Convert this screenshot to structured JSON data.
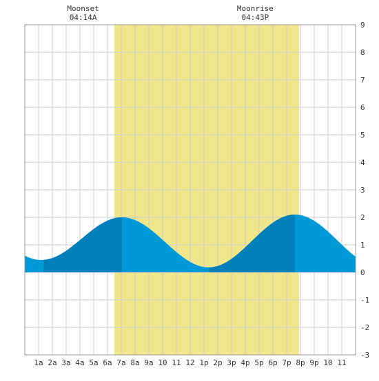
{
  "chart_data": {
    "type": "area",
    "xlim": [
      0,
      24
    ],
    "ylim": [
      -3,
      9
    ],
    "y_ticks": [
      -3,
      -2,
      -1,
      0,
      1,
      2,
      3,
      4,
      5,
      6,
      7,
      8,
      9
    ],
    "x_tick_labels": [
      "1a",
      "2a",
      "3a",
      "4a",
      "5a",
      "6a",
      "7a",
      "8a",
      "9a",
      "10",
      "11",
      "12",
      "1p",
      "2p",
      "3p",
      "4p",
      "5p",
      "6p",
      "7p",
      "8p",
      "9p",
      "10",
      "11"
    ],
    "grid": true,
    "daylight": {
      "start": 6.5,
      "end": 19.9
    },
    "highlighted_hours": [
      [
        1.35,
        7.05
      ],
      [
        13.35,
        19.6
      ]
    ],
    "extrema": [
      {
        "x": 1.2,
        "y": 0.45
      },
      {
        "x": 7.05,
        "y": 2.0
      },
      {
        "x": 13.35,
        "y": 0.18
      },
      {
        "x": 19.6,
        "y": 2.1
      }
    ],
    "series": [
      {
        "x": [
          0,
          0.5,
          1.2,
          2,
          3,
          4,
          5,
          6,
          7.05,
          8,
          9,
          10,
          11,
          12,
          13.35,
          14,
          15,
          16,
          17,
          18,
          19.6,
          20,
          21,
          22,
          23,
          24
        ],
        "y": [
          0.58,
          0.52,
          0.45,
          0.55,
          0.8,
          1.15,
          1.5,
          1.82,
          2.0,
          1.88,
          1.55,
          1.1,
          0.65,
          0.32,
          0.18,
          0.23,
          0.48,
          0.85,
          1.3,
          1.72,
          2.1,
          2.08,
          1.85,
          1.5,
          1.1,
          0.8
        ]
      }
    ],
    "events": [
      {
        "label": "Moonset",
        "time": "04:14A",
        "x": 4.23
      },
      {
        "label": "Moonrise",
        "time": "04:43P",
        "x": 16.72
      }
    ],
    "colors": {
      "daylight": "#f0e68c",
      "tide_fill": "#0099d8",
      "tide_fill_highlight": "#0080bb",
      "grid": "#cccccc",
      "frame": "#999999"
    }
  }
}
